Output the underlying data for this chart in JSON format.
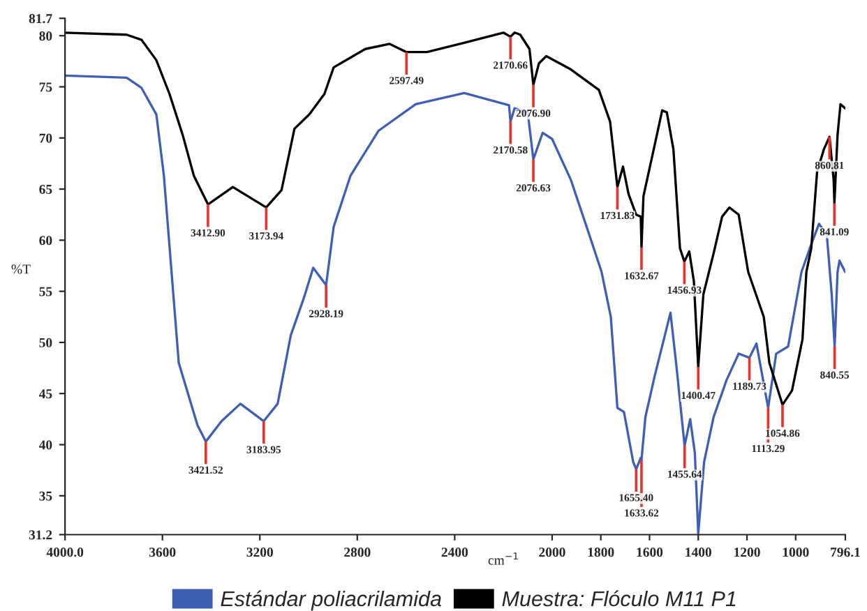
{
  "chart_data": {
    "type": "line",
    "xlabel": "cm$^{−1}$",
    "ylabel": "%T",
    "xlim": [
      4000.0,
      796.1
    ],
    "xticks": [
      {
        "value": 4000.0,
        "label": "4000.0"
      },
      3600,
      3200,
      2800,
      2400,
      2000,
      1800,
      1600,
      1400,
      1200,
      1000,
      {
        "value": 796.1,
        "label": "796.1"
      }
    ],
    "ylim": [
      31.2,
      81.7
    ],
    "yticks": [
      {
        "value": 31.2,
        "label": "31.2"
      },
      35,
      40,
      45,
      50,
      55,
      60,
      65,
      70,
      75,
      80,
      {
        "value": 81.7,
        "label": "81.7"
      }
    ],
    "grid": false,
    "legend": "bottom",
    "marker": "none",
    "line_style": "solid",
    "series": [
      {
        "name": "Estándar poliacrilamida",
        "color": "#3f5fb5",
        "x": [
          4000,
          3747,
          3686,
          3625,
          3594,
          3533,
          3456,
          3422,
          3357,
          3280,
          3184,
          3127,
          3073,
          3020,
          2981,
          2928,
          2897,
          2828,
          2713,
          2560,
          2361,
          2177,
          2171,
          2154,
          2100,
          2077,
          2039,
          2000,
          1923,
          1847,
          1797,
          1759,
          1732,
          1705,
          1667,
          1655,
          1636,
          1633,
          1617,
          1579,
          1514,
          1491,
          1456,
          1433,
          1414,
          1400,
          1376,
          1337,
          1284,
          1234,
          1190,
          1161,
          1113,
          1080,
          1031,
          976,
          936,
          904,
          872,
          852,
          840,
          828,
          820,
          797
        ],
        "values": [
          76.1,
          75.9,
          74.9,
          72.3,
          66.3,
          48.0,
          41.9,
          40.3,
          42.3,
          44.0,
          42.3,
          44.0,
          50.7,
          54.3,
          57.3,
          55.6,
          61.3,
          66.3,
          70.7,
          73.3,
          74.4,
          73.2,
          71.6,
          72.9,
          72.5,
          67.9,
          70.5,
          69.9,
          65.9,
          60.5,
          56.9,
          52.5,
          43.6,
          43.2,
          38.3,
          37.6,
          38.7,
          38.5,
          42.7,
          46.7,
          52.9,
          48.0,
          39.9,
          42.5,
          39.2,
          31.3,
          38.3,
          42.7,
          46.3,
          48.9,
          48.5,
          49.9,
          43.6,
          48.9,
          49.6,
          56.9,
          59.6,
          61.6,
          60.5,
          54.7,
          49.6,
          56.9,
          58.0,
          56.9
        ]
      },
      {
        "name": "Muestra: Flóculo M11 P1",
        "color": "#000000",
        "x": [
          4000,
          3747,
          3686,
          3625,
          3571,
          3517,
          3471,
          3413,
          3311,
          3174,
          3111,
          3058,
          2997,
          2935,
          2897,
          2767,
          2667,
          2598,
          2514,
          2361,
          2231,
          2200,
          2171,
          2154,
          2131,
          2093,
          2077,
          2054,
          2024,
          1923,
          1808,
          1762,
          1732,
          1709,
          1686,
          1655,
          1636,
          1633,
          1625,
          1579,
          1548,
          1529,
          1502,
          1475,
          1457,
          1437,
          1418,
          1400,
          1379,
          1337,
          1302,
          1272,
          1234,
          1195,
          1131,
          1108,
          1054,
          1015,
          972,
          956,
          936,
          912,
          884,
          861,
          844,
          841,
          828,
          816,
          797
        ],
        "values": [
          80.3,
          80.1,
          79.6,
          77.6,
          74.3,
          70.3,
          66.3,
          63.5,
          65.2,
          63.2,
          64.9,
          70.9,
          72.3,
          74.3,
          76.9,
          78.7,
          79.2,
          78.4,
          78.4,
          79.3,
          80.1,
          80.3,
          79.9,
          80.3,
          80.1,
          78.7,
          75.2,
          77.3,
          78.0,
          76.7,
          74.7,
          71.6,
          65.2,
          67.2,
          64.5,
          62.5,
          62.3,
          59.3,
          64.3,
          69.3,
          72.7,
          72.5,
          68.9,
          59.2,
          57.9,
          58.9,
          56.0,
          47.6,
          54.7,
          58.7,
          62.3,
          63.2,
          62.5,
          56.9,
          52.5,
          48.0,
          43.9,
          45.3,
          50.3,
          56.9,
          59.2,
          66.7,
          68.9,
          70.1,
          65.9,
          63.6,
          70.3,
          73.3,
          72.9
        ]
      }
    ],
    "annotations": [
      {
        "text": "3412.90",
        "x": 3413,
        "y": 63.5
      },
      {
        "text": "3173.94",
        "x": 3174,
        "y": 63.2
      },
      {
        "text": "2597.49",
        "x": 2598,
        "y": 78.4
      },
      {
        "text": "2170.66",
        "x": 2171,
        "y": 79.9
      },
      {
        "text": "2076.90",
        "x": 2077,
        "y": 75.2
      },
      {
        "text": "1731.83",
        "x": 1732,
        "y": 65.2
      },
      {
        "text": "1632.67",
        "x": 1633,
        "y": 59.3
      },
      {
        "text": "1456.93",
        "x": 1457,
        "y": 57.9
      },
      {
        "text": "1400.47",
        "x": 1400,
        "y": 47.6
      },
      {
        "text": "1054.86",
        "x": 1054,
        "y": 43.9
      },
      {
        "text": "860.81",
        "x": 861,
        "y": 70.1
      },
      {
        "text": "841.09",
        "x": 841,
        "y": 63.6
      },
      {
        "text": "3421.52",
        "x": 3422,
        "y": 40.3
      },
      {
        "text": "3183.95",
        "x": 3184,
        "y": 42.3
      },
      {
        "text": "2928.19",
        "x": 2928,
        "y": 55.6
      },
      {
        "text": "2170.58",
        "x": 2171,
        "y": 71.6
      },
      {
        "text": "2076.63",
        "x": 2077,
        "y": 67.9
      },
      {
        "text": "1655.40",
        "x": 1655,
        "y": 37.6
      },
      {
        "text": "1633.62",
        "x": 1633,
        "y": 38.5
      },
      {
        "text": "1455.64",
        "x": 1456,
        "y": 39.9
      },
      {
        "text": "1189.73",
        "x": 1190,
        "y": 48.5
      },
      {
        "text": "1113.29",
        "x": 1113,
        "y": 43.6
      },
      {
        "text": "840.55",
        "x": 840,
        "y": 49.6
      }
    ]
  }
}
